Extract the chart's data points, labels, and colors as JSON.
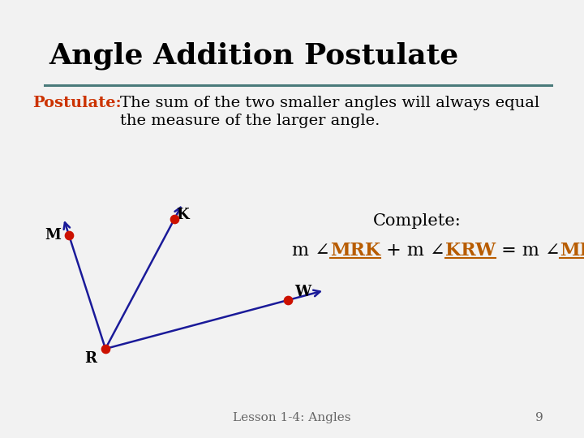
{
  "title": "Angle Addition Postulate",
  "title_fontsize": 26,
  "title_color": "#000000",
  "postulate_label": "Postulate:",
  "postulate_label_color": "#cc3300",
  "postulate_text_line1": "The sum of the two smaller angles will always equal",
  "postulate_text_line2": "the measure of the larger angle.",
  "postulate_fontsize": 14,
  "complete_label": "Complete:",
  "complete_fontsize": 15,
  "background_color": "#f2f2f2",
  "border_color": "#4a7a7a",
  "separator_color": "#4a7a7a",
  "equation_fontsize": 16,
  "equation_color": "#b85c00",
  "footer_text": "Lesson 1-4: Angles",
  "footer_page": "9",
  "footer_fontsize": 11,
  "ray_color": "#1a1a99",
  "dot_color": "#cc1100",
  "dot_size": 55,
  "label_fontsize": 13
}
